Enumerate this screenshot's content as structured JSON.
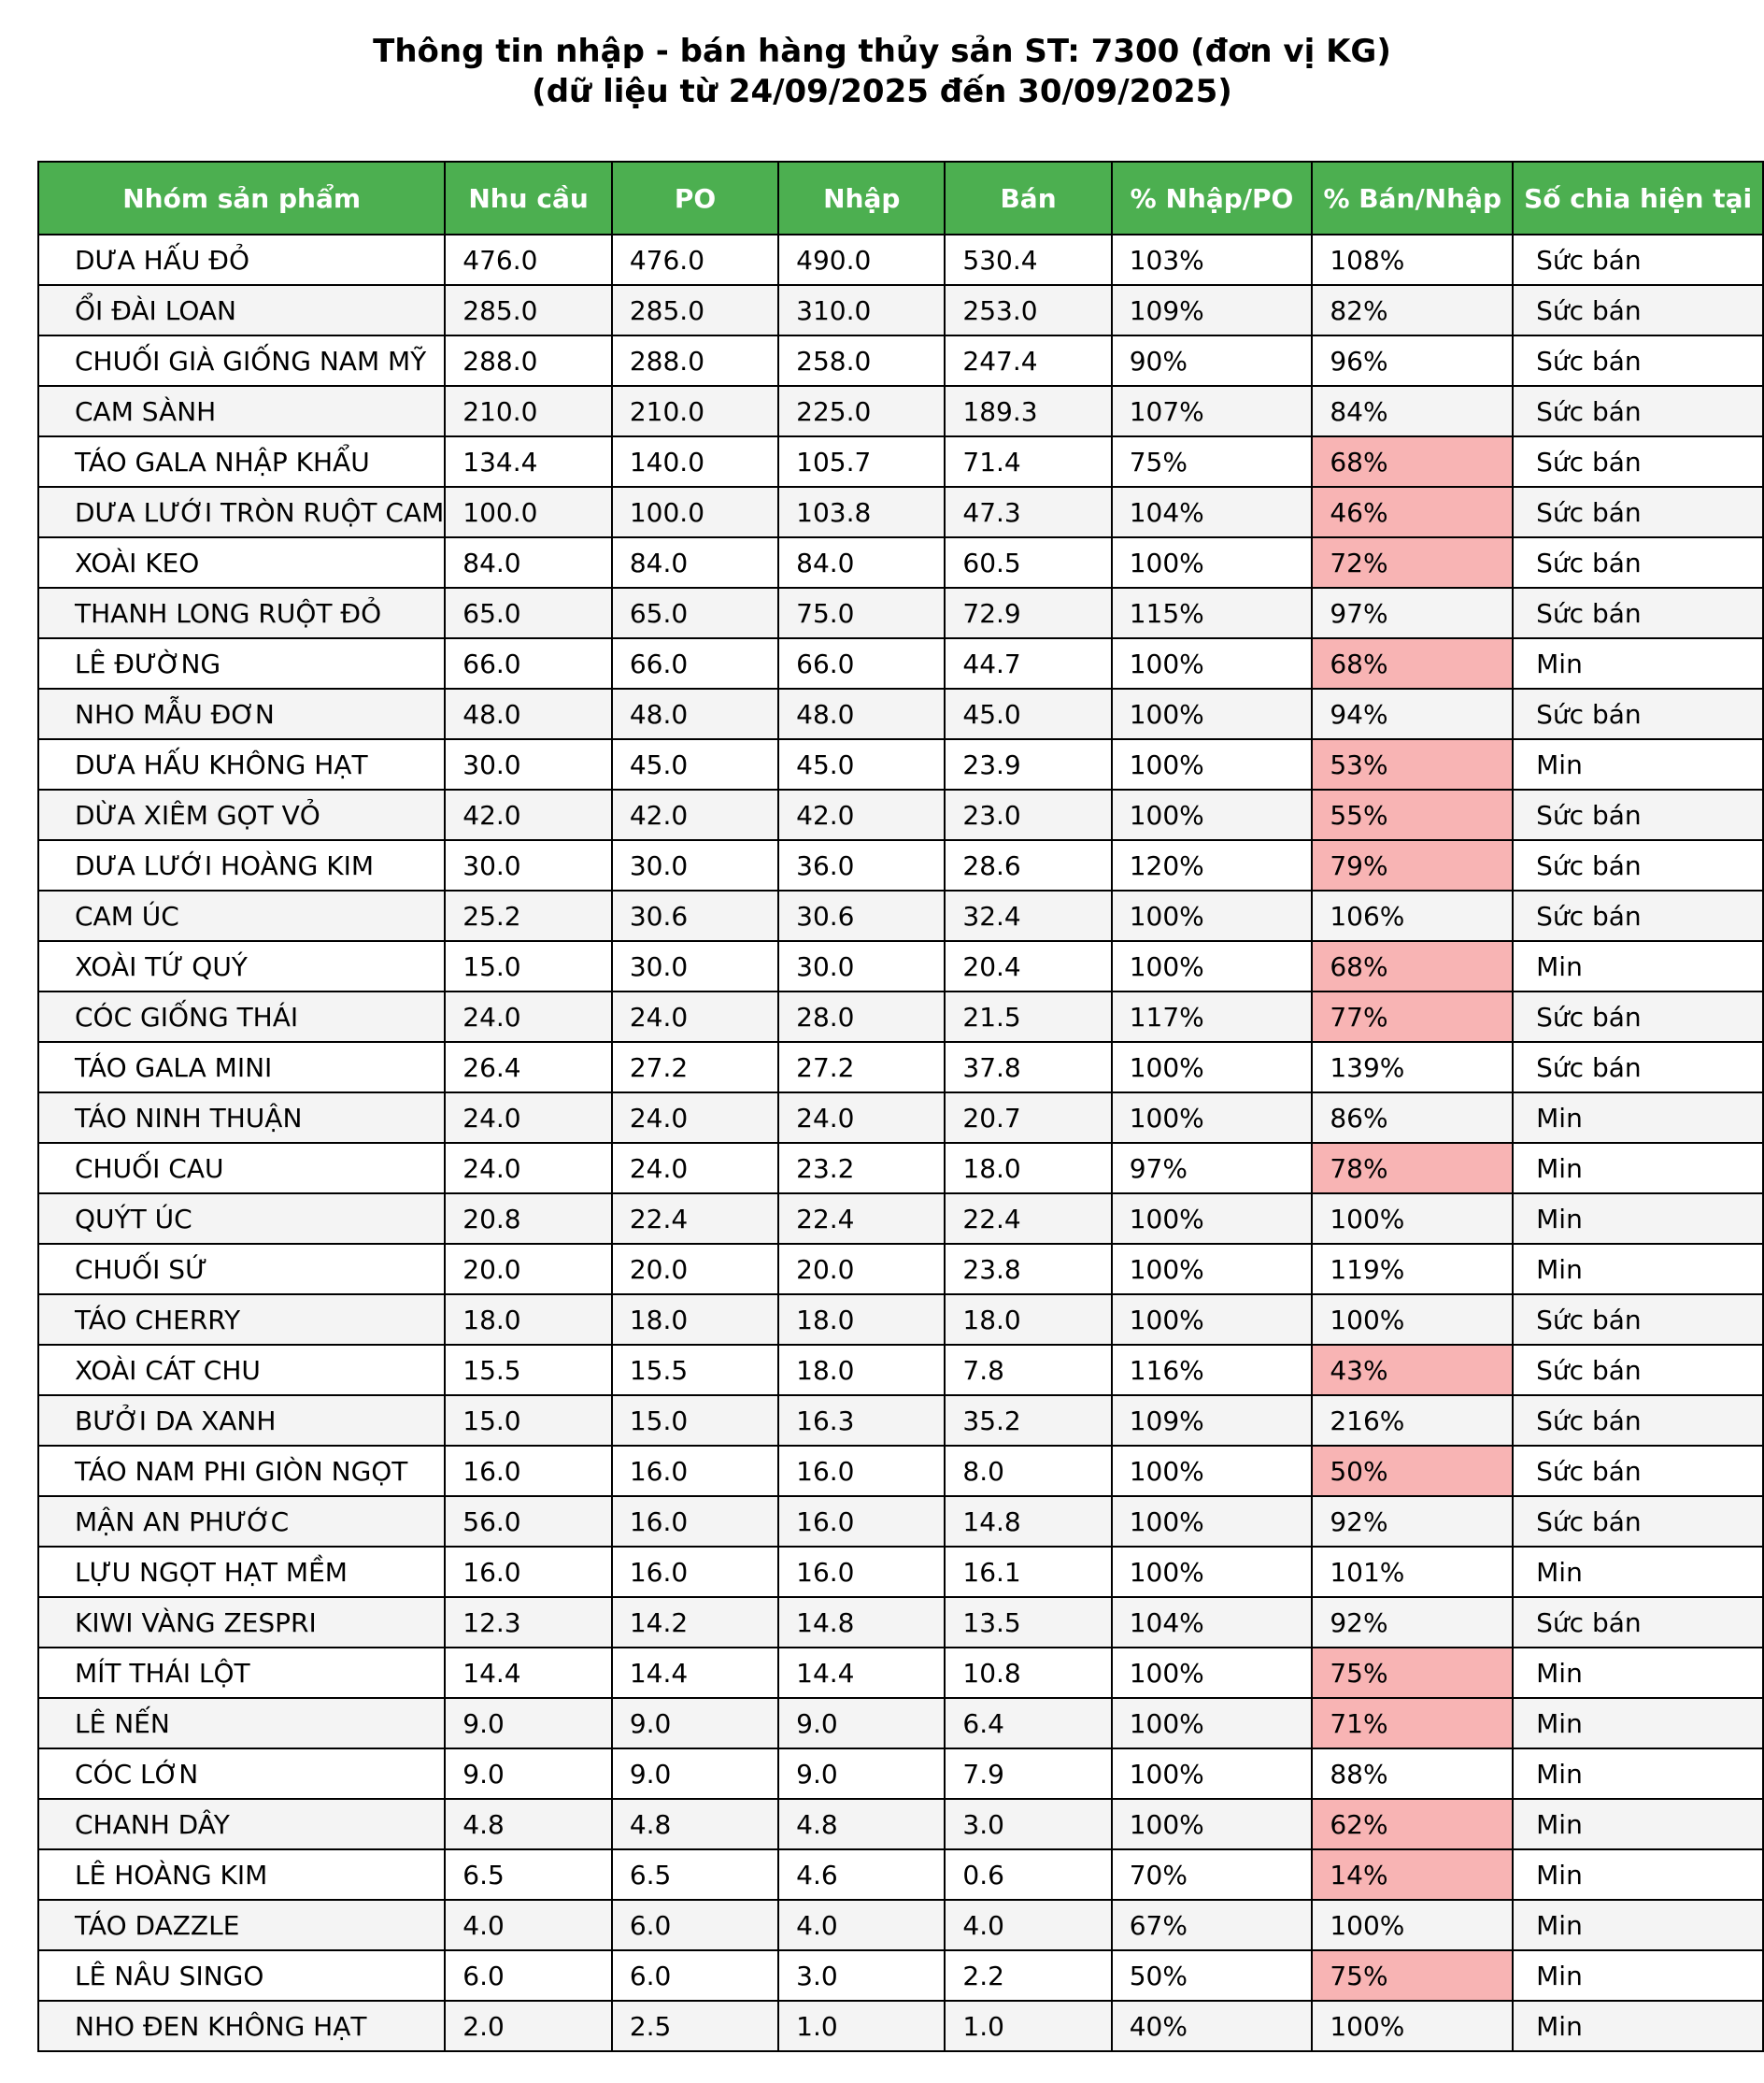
{
  "title": {
    "line1": "Thông tin nhập - bán hàng thủy sản ST: 7300 (đơn vị KG)",
    "line2": "(dữ liệu từ 24/09/2025 đến 30/09/2025)"
  },
  "columns": [
    "Nhóm sản phẩm",
    "Nhu cầu",
    "PO",
    "Nhập",
    "Bán",
    "% Nhập/PO",
    "% Bán/Nhập",
    "Số chia hiện tại"
  ],
  "highlight_color": "#f8b4b4",
  "header_color": "#4caf50",
  "rows": [
    {
      "name": "DƯA HẤU ĐỎ",
      "demand": "476.0",
      "po": "476.0",
      "import": "490.0",
      "sale": "530.4",
      "import_po": "103%",
      "sale_import": "108%",
      "divisor": "Sức bán",
      "low": false
    },
    {
      "name": "ỔI ĐÀI LOAN",
      "demand": "285.0",
      "po": "285.0",
      "import": "310.0",
      "sale": "253.0",
      "import_po": "109%",
      "sale_import": "82%",
      "divisor": "Sức bán",
      "low": false
    },
    {
      "name": "CHUỐI GIÀ GIỐNG NAM MỸ",
      "demand": "288.0",
      "po": "288.0",
      "import": "258.0",
      "sale": "247.4",
      "import_po": "90%",
      "sale_import": "96%",
      "divisor": "Sức bán",
      "low": false
    },
    {
      "name": "CAM SÀNH",
      "demand": "210.0",
      "po": "210.0",
      "import": "225.0",
      "sale": "189.3",
      "import_po": "107%",
      "sale_import": "84%",
      "divisor": "Sức bán",
      "low": false
    },
    {
      "name": "TÁO GALA NHẬP KHẨU",
      "demand": "134.4",
      "po": "140.0",
      "import": "105.7",
      "sale": "71.4",
      "import_po": "75%",
      "sale_import": "68%",
      "divisor": "Sức bán",
      "low": true
    },
    {
      "name": "DƯA LƯỚI TRÒN RUỘT CAM",
      "demand": "100.0",
      "po": "100.0",
      "import": "103.8",
      "sale": "47.3",
      "import_po": "104%",
      "sale_import": "46%",
      "divisor": "Sức bán",
      "low": true
    },
    {
      "name": "XOÀI KEO",
      "demand": "84.0",
      "po": "84.0",
      "import": "84.0",
      "sale": "60.5",
      "import_po": "100%",
      "sale_import": "72%",
      "divisor": "Sức bán",
      "low": true
    },
    {
      "name": "THANH LONG RUỘT ĐỎ",
      "demand": "65.0",
      "po": "65.0",
      "import": "75.0",
      "sale": "72.9",
      "import_po": "115%",
      "sale_import": "97%",
      "divisor": "Sức bán",
      "low": false
    },
    {
      "name": "LÊ ĐƯỜNG",
      "demand": "66.0",
      "po": "66.0",
      "import": "66.0",
      "sale": "44.7",
      "import_po": "100%",
      "sale_import": "68%",
      "divisor": "Min",
      "low": true
    },
    {
      "name": "NHO MẪU ĐƠN",
      "demand": "48.0",
      "po": "48.0",
      "import": "48.0",
      "sale": "45.0",
      "import_po": "100%",
      "sale_import": "94%",
      "divisor": "Sức bán",
      "low": false
    },
    {
      "name": "DƯA HẤU KHÔNG HẠT",
      "demand": "30.0",
      "po": "45.0",
      "import": "45.0",
      "sale": "23.9",
      "import_po": "100%",
      "sale_import": "53%",
      "divisor": "Min",
      "low": true
    },
    {
      "name": "DỪA XIÊM GỌT VỎ",
      "demand": "42.0",
      "po": "42.0",
      "import": "42.0",
      "sale": "23.0",
      "import_po": "100%",
      "sale_import": "55%",
      "divisor": "Sức bán",
      "low": true
    },
    {
      "name": "DƯA LƯỚI HOÀNG KIM",
      "demand": "30.0",
      "po": "30.0",
      "import": "36.0",
      "sale": "28.6",
      "import_po": "120%",
      "sale_import": "79%",
      "divisor": "Sức bán",
      "low": true
    },
    {
      "name": "CAM ÚC",
      "demand": "25.2",
      "po": "30.6",
      "import": "30.6",
      "sale": "32.4",
      "import_po": "100%",
      "sale_import": "106%",
      "divisor": "Sức bán",
      "low": false
    },
    {
      "name": "XOÀI TỨ QUÝ",
      "demand": "15.0",
      "po": "30.0",
      "import": "30.0",
      "sale": "20.4",
      "import_po": "100%",
      "sale_import": "68%",
      "divisor": "Min",
      "low": true
    },
    {
      "name": "CÓC GIỐNG THÁI",
      "demand": "24.0",
      "po": "24.0",
      "import": "28.0",
      "sale": "21.5",
      "import_po": "117%",
      "sale_import": "77%",
      "divisor": "Sức bán",
      "low": true
    },
    {
      "name": "TÁO GALA MINI",
      "demand": "26.4",
      "po": "27.2",
      "import": "27.2",
      "sale": "37.8",
      "import_po": "100%",
      "sale_import": "139%",
      "divisor": "Sức bán",
      "low": false
    },
    {
      "name": "TÁO NINH THUẬN",
      "demand": "24.0",
      "po": "24.0",
      "import": "24.0",
      "sale": "20.7",
      "import_po": "100%",
      "sale_import": "86%",
      "divisor": "Min",
      "low": false
    },
    {
      "name": "CHUỐI CAU",
      "demand": "24.0",
      "po": "24.0",
      "import": "23.2",
      "sale": "18.0",
      "import_po": "97%",
      "sale_import": "78%",
      "divisor": "Min",
      "low": true
    },
    {
      "name": "QUÝT ÚC",
      "demand": "20.8",
      "po": "22.4",
      "import": "22.4",
      "sale": "22.4",
      "import_po": "100%",
      "sale_import": "100%",
      "divisor": "Min",
      "low": false
    },
    {
      "name": "CHUỐI SỨ",
      "demand": "20.0",
      "po": "20.0",
      "import": "20.0",
      "sale": "23.8",
      "import_po": "100%",
      "sale_import": "119%",
      "divisor": "Min",
      "low": false
    },
    {
      "name": "TÁO CHERRY",
      "demand": "18.0",
      "po": "18.0",
      "import": "18.0",
      "sale": "18.0",
      "import_po": "100%",
      "sale_import": "100%",
      "divisor": "Sức bán",
      "low": false
    },
    {
      "name": "XOÀI CÁT CHU",
      "demand": "15.5",
      "po": "15.5",
      "import": "18.0",
      "sale": "7.8",
      "import_po": "116%",
      "sale_import": "43%",
      "divisor": "Sức bán",
      "low": true
    },
    {
      "name": "BƯỞI DA XANH",
      "demand": "15.0",
      "po": "15.0",
      "import": "16.3",
      "sale": "35.2",
      "import_po": "109%",
      "sale_import": "216%",
      "divisor": "Sức bán",
      "low": false
    },
    {
      "name": "TÁO NAM PHI GIÒN NGỌT",
      "demand": "16.0",
      "po": "16.0",
      "import": "16.0",
      "sale": "8.0",
      "import_po": "100%",
      "sale_import": "50%",
      "divisor": "Sức bán",
      "low": true
    },
    {
      "name": "MẬN AN PHƯỚC",
      "demand": "56.0",
      "po": "16.0",
      "import": "16.0",
      "sale": "14.8",
      "import_po": "100%",
      "sale_import": "92%",
      "divisor": "Sức bán",
      "low": false
    },
    {
      "name": "LỰU NGỌT HẠT MỀM",
      "demand": "16.0",
      "po": "16.0",
      "import": "16.0",
      "sale": "16.1",
      "import_po": "100%",
      "sale_import": "101%",
      "divisor": "Min",
      "low": false
    },
    {
      "name": "KIWI VÀNG ZESPRI",
      "demand": "12.3",
      "po": "14.2",
      "import": "14.8",
      "sale": "13.5",
      "import_po": "104%",
      "sale_import": "92%",
      "divisor": "Sức bán",
      "low": false
    },
    {
      "name": "MÍT THÁI LỘT",
      "demand": "14.4",
      "po": "14.4",
      "import": "14.4",
      "sale": "10.8",
      "import_po": "100%",
      "sale_import": "75%",
      "divisor": "Min",
      "low": true
    },
    {
      "name": "LÊ NẾN",
      "demand": "9.0",
      "po": "9.0",
      "import": "9.0",
      "sale": "6.4",
      "import_po": "100%",
      "sale_import": "71%",
      "divisor": "Min",
      "low": true
    },
    {
      "name": "CÓC LỚN",
      "demand": "9.0",
      "po": "9.0",
      "import": "9.0",
      "sale": "7.9",
      "import_po": "100%",
      "sale_import": "88%",
      "divisor": "Min",
      "low": false
    },
    {
      "name": "CHANH DÂY",
      "demand": "4.8",
      "po": "4.8",
      "import": "4.8",
      "sale": "3.0",
      "import_po": "100%",
      "sale_import": "62%",
      "divisor": "Min",
      "low": true
    },
    {
      "name": "LÊ HOÀNG KIM",
      "demand": "6.5",
      "po": "6.5",
      "import": "4.6",
      "sale": "0.6",
      "import_po": "70%",
      "sale_import": "14%",
      "divisor": "Min",
      "low": true
    },
    {
      "name": "TÁO DAZZLE",
      "demand": "4.0",
      "po": "6.0",
      "import": "4.0",
      "sale": "4.0",
      "import_po": "67%",
      "sale_import": "100%",
      "divisor": "Min",
      "low": false
    },
    {
      "name": "LÊ NÂU SINGO",
      "demand": "6.0",
      "po": "6.0",
      "import": "3.0",
      "sale": "2.2",
      "import_po": "50%",
      "sale_import": "75%",
      "divisor": "Min",
      "low": true
    },
    {
      "name": "NHO ĐEN KHÔNG HẠT",
      "demand": "2.0",
      "po": "2.5",
      "import": "1.0",
      "sale": "1.0",
      "import_po": "40%",
      "sale_import": "100%",
      "divisor": "Min",
      "low": false
    }
  ]
}
